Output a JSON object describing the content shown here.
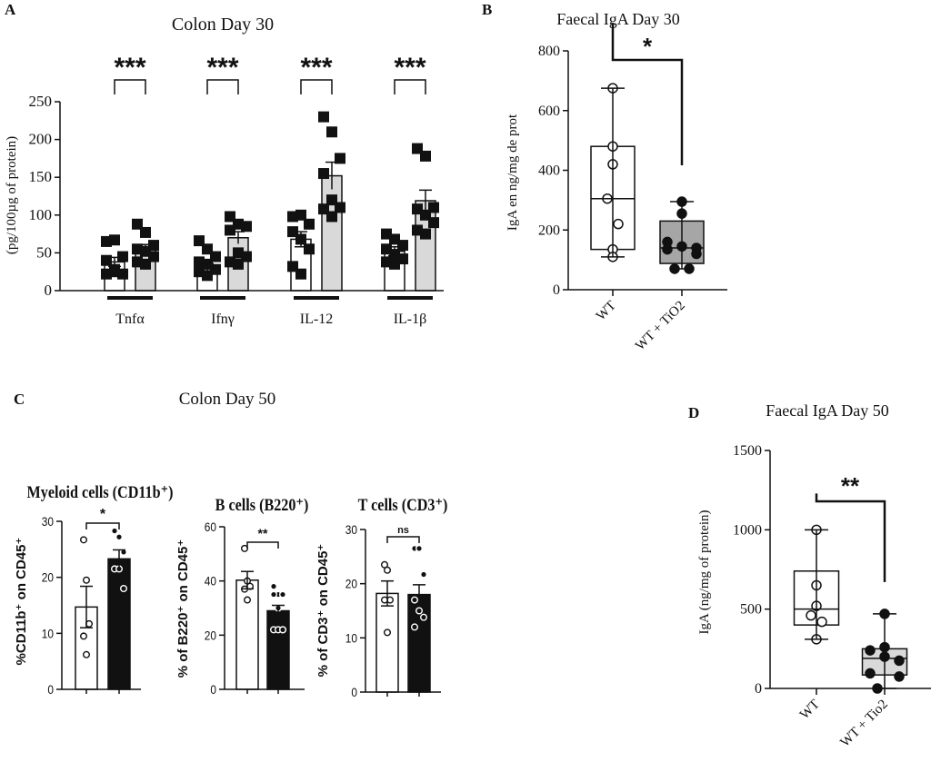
{
  "panel_c": {
    "label": "C",
    "title": "Colon Day 50"
  },
  "chart_data": [
    {
      "id": "A",
      "label": "A",
      "type": "bar",
      "title": "Colon Day 30",
      "ylabel": "(pg/100µg of protein)",
      "ylim": [
        0,
        250
      ],
      "yticks": [
        "0",
        "50",
        "100",
        "150",
        "200",
        "250"
      ],
      "categories": [
        "Tnfα",
        "Ifnγ",
        "IL-12",
        "IL-1β"
      ],
      "significance": [
        "***",
        "***",
        "***",
        "***"
      ],
      "series": [
        {
          "color": "#ffffff",
          "values": [
            38,
            30,
            68,
            52
          ],
          "errors": [
            6,
            6,
            10,
            6
          ],
          "points": [
            [
              65,
              67,
              45,
              40,
              25,
              22,
              22,
              28
            ],
            [
              66,
              55,
              45,
              38,
              35,
              28,
              25,
              20
            ],
            [
              98,
              100,
              88,
              78,
              68,
              55,
              32,
              22
            ],
            [
              75,
              68,
              60,
              55,
              48,
              42,
              38,
              35
            ]
          ]
        },
        {
          "color": "#d9d9d9",
          "values": [
            55,
            70,
            152,
            119
          ],
          "errors": [
            6,
            8,
            18,
            14
          ],
          "points": [
            [
              88,
              77,
              60,
              55,
              52,
              45,
              38,
              35
            ],
            [
              98,
              88,
              85,
              80,
              50,
              45,
              38,
              35
            ],
            [
              230,
              210,
              175,
              155,
              120,
              110,
              108,
              98
            ],
            [
              188,
              178,
              110,
              108,
              100,
              90,
              80,
              75
            ]
          ]
        }
      ],
      "marker": "square"
    },
    {
      "id": "B",
      "label": "B",
      "type": "box",
      "title": "Faecal IgA Day 30",
      "ylabel": "IgA en ng/mg de prot",
      "ylim": [
        0,
        800
      ],
      "yticks": [
        "0",
        "200",
        "400",
        "600",
        "800"
      ],
      "categories": [
        "WT",
        "WT + TiO2"
      ],
      "significance": "*",
      "boxes": [
        {
          "min": 110,
          "q1": 135,
          "median": 305,
          "q3": 480,
          "max": 675,
          "fill": "#ffffff",
          "marker": "open-circle",
          "points": [
            675,
            480,
            420,
            305,
            220,
            135,
            110
          ]
        },
        {
          "min": 70,
          "q1": 88,
          "median": 140,
          "q3": 230,
          "max": 295,
          "fill": "#a6a6a6",
          "marker": "filled-circle",
          "points": [
            295,
            255,
            160,
            145,
            140,
            135,
            120,
            70,
            70
          ]
        }
      ]
    },
    {
      "id": "C1",
      "type": "bar",
      "title": "Myeloid cells (CD11b⁺)",
      "ylabel": "%CD11b⁺ on CD45⁺",
      "ylim": [
        0,
        30
      ],
      "yticks": [
        "0",
        "10",
        "20",
        "30"
      ],
      "significance": "*",
      "series": [
        {
          "color": "#ffffff",
          "values": [
            14.7
          ],
          "errors": [
            3.7
          ],
          "points": [
            [
              26.7,
              19.5,
              11.7,
              9.5,
              6.2
            ]
          ]
        },
        {
          "color": "#111111",
          "values": [
            23.3
          ],
          "errors": [
            1.6
          ],
          "points": [
            [
              28.3,
              27.2,
              24.5,
              21.5,
              21.5,
              18
            ]
          ]
        }
      ],
      "marker": "open-circle"
    },
    {
      "id": "C2",
      "type": "bar",
      "title": "B cells (B220⁺)",
      "ylabel": "% of B220⁺ on CD45⁺",
      "ylim": [
        0,
        60
      ],
      "yticks": [
        "0",
        "20",
        "40",
        "60"
      ],
      "significance": "**",
      "series": [
        {
          "color": "#ffffff",
          "values": [
            40.3
          ],
          "errors": [
            3.2
          ],
          "points": [
            [
              52,
              40,
              38,
              37,
              33
            ]
          ]
        },
        {
          "color": "#111111",
          "values": [
            29
          ],
          "errors": [
            2
          ],
          "points": [
            [
              38,
              35,
              35,
              35,
              30,
              22,
              22,
              22,
              22
            ]
          ]
        }
      ],
      "marker": "open-circle"
    },
    {
      "id": "C3",
      "type": "bar",
      "title": "T cells (CD3⁺)",
      "ylabel": "% of CD3⁺ on CD45⁺",
      "ylim": [
        0,
        30
      ],
      "yticks": [
        "0",
        "10",
        "20",
        "30"
      ],
      "significance": "ns",
      "series": [
        {
          "color": "#ffffff",
          "values": [
            18.2
          ],
          "errors": [
            2.3
          ],
          "points": [
            [
              23.5,
              22.5,
              17,
              17,
              11
            ]
          ]
        },
        {
          "color": "#111111",
          "values": [
            18
          ],
          "errors": [
            1.8
          ],
          "points": [
            [
              26.5,
              26.5,
              21.7,
              17,
              15,
              13.8,
              12
            ]
          ]
        }
      ],
      "marker": "open-circle"
    },
    {
      "id": "D",
      "label": "D",
      "type": "box",
      "title": "Faecal IgA Day 50",
      "ylabel": "IgA (ng/mg of protein)",
      "ylim": [
        0,
        1500
      ],
      "yticks": [
        "0",
        "500",
        "1000",
        "1500"
      ],
      "categories": [
        "WT",
        "WT + Tio2"
      ],
      "significance": "**",
      "boxes": [
        {
          "min": 310,
          "q1": 400,
          "median": 500,
          "q3": 740,
          "max": 1000,
          "fill": "#ffffff",
          "marker": "open-circle",
          "points": [
            1000,
            650,
            520,
            460,
            420,
            310
          ]
        },
        {
          "min": 0,
          "q1": 85,
          "median": 190,
          "q3": 250,
          "max": 470,
          "fill": "#d9d9d9",
          "marker": "filled-circle",
          "points": [
            470,
            260,
            240,
            200,
            175,
            95,
            75,
            0
          ]
        }
      ]
    }
  ]
}
